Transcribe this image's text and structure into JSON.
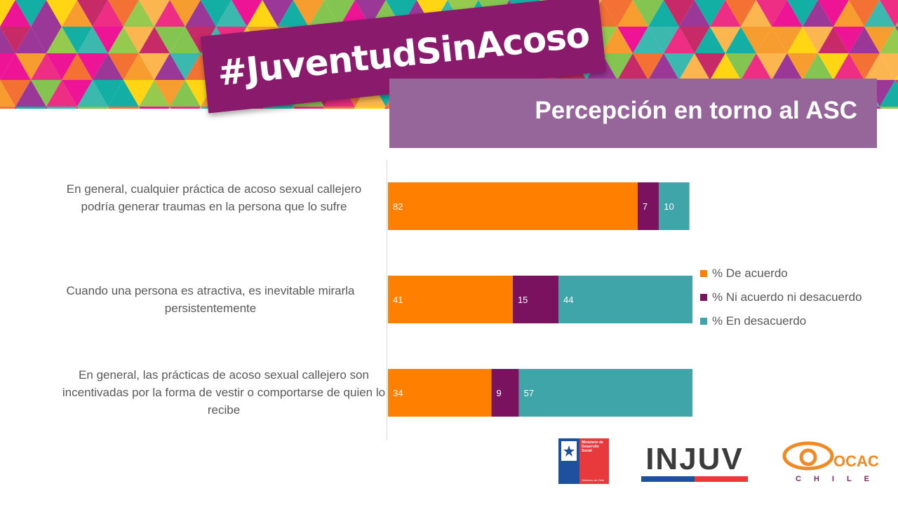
{
  "header": {
    "hashtag": "#JuventudSinAcoso",
    "title": "Percepción en torno al ASC"
  },
  "colors": {
    "de_acuerdo": "#ff7f00",
    "ni_acuerdo": "#7b1260",
    "en_desacuerdo": "#3fa5a8",
    "banner_purple": "#8a1a6b",
    "title_band": "#96669a"
  },
  "chart_data": {
    "type": "bar",
    "orientation": "horizontal",
    "stacked": true,
    "categories": [
      "En general, cualquier práctica de acoso sexual callejero podría generar traumas en la persona que lo sufre",
      "Cuando una persona es atractiva, es inevitable mirarla persistentemente",
      "En general, las prácticas de acoso sexual callejero son incentivadas por la forma de vestir o comportarse de quien lo recibe"
    ],
    "series": [
      {
        "name": "% De acuerdo",
        "values": [
          82,
          41,
          34
        ],
        "color": "#ff7f00"
      },
      {
        "name": "% Ni acuerdo ni desacuerdo",
        "values": [
          7,
          15,
          9
        ],
        "color": "#7b1260"
      },
      {
        "name": "% En desacuerdo",
        "values": [
          10,
          44,
          57
        ],
        "color": "#3fa5a8"
      }
    ],
    "xlim": [
      0,
      100
    ],
    "legend_position": "right",
    "grid": false
  },
  "logos": {
    "ministerio": [
      "Ministerio de",
      "Desarrollo",
      "Social"
    ],
    "gobierno": "Gobierno de Chile",
    "injuv": "INJUV",
    "ocac": "OCAC",
    "ocac_sub": "CHILE"
  }
}
